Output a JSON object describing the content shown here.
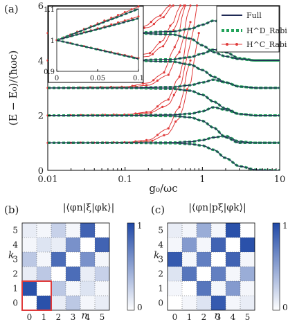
{
  "chart_data": [
    {
      "panel": "(a)",
      "type": "line",
      "xlabel": "g₀/ωc",
      "ylabel": "(E − E₀)/(ħωc)",
      "xscale": "log",
      "xlim": [
        0.01,
        10
      ],
      "ylim": [
        0,
        6
      ],
      "xticks": [
        "0.01",
        "0.1",
        "1",
        "10"
      ],
      "yticks": [
        "0",
        "2",
        "4",
        "6"
      ],
      "legend_position": "top-right",
      "legend": [
        "Full",
        "H^D_Rabi",
        "H^C_Rabi"
      ],
      "series_colors": {
        "full": "#1f2a55",
        "dispersive": "#22a35a",
        "counter": "#e03a3a"
      },
      "levels": [
        {
          "name": "level-1",
          "x": [
            0.01,
            0.1,
            0.4,
            0.7,
            1.0,
            1.4,
            2.0,
            3.0,
            5.0,
            10
          ],
          "full": [
            1.0,
            1.0,
            0.99,
            0.96,
            0.9,
            0.75,
            0.45,
            0.15,
            0.02,
            0.0
          ]
        },
        {
          "name": "level-2",
          "x": [
            0.01,
            0.1,
            0.4,
            0.7,
            1.0,
            1.4,
            2.0,
            3.0,
            5.0,
            10
          ],
          "full": [
            1.0,
            1.0,
            1.01,
            1.04,
            1.1,
            1.2,
            1.25,
            1.05,
            1.0,
            1.0
          ]
        },
        {
          "name": "level-3",
          "x": [
            0.01,
            0.1,
            0.4,
            0.7,
            1.0,
            1.4,
            2.0,
            3.0,
            5.0,
            10
          ],
          "full": [
            2.0,
            2.0,
            1.98,
            1.93,
            1.8,
            1.55,
            1.2,
            1.0,
            1.0,
            1.0
          ]
        },
        {
          "name": "level-4",
          "x": [
            0.01,
            0.1,
            0.4,
            0.7,
            1.0,
            1.4,
            2.0,
            3.0,
            5.0,
            10
          ],
          "full": [
            2.0,
            2.0,
            2.02,
            2.06,
            2.15,
            2.3,
            2.2,
            2.05,
            2.0,
            2.0
          ]
        },
        {
          "name": "level-5",
          "x": [
            0.01,
            0.1,
            0.4,
            0.7,
            1.0,
            1.4,
            2.0,
            3.0,
            5.0,
            10
          ],
          "full": [
            3.0,
            3.0,
            2.97,
            2.9,
            2.75,
            2.5,
            2.25,
            2.05,
            2.0,
            2.0
          ]
        },
        {
          "name": "level-6",
          "x": [
            0.01,
            0.1,
            0.4,
            0.7,
            1.0,
            1.4,
            2.0,
            3.0,
            5.0,
            10
          ],
          "full": [
            3.0,
            3.0,
            3.03,
            3.1,
            3.2,
            3.3,
            3.2,
            3.05,
            3.0,
            3.0
          ]
        },
        {
          "name": "level-7",
          "x": [
            0.01,
            0.1,
            0.4,
            0.7,
            1.0,
            1.4,
            2.0,
            3.0,
            5.0,
            10
          ],
          "full": [
            4.0,
            4.0,
            3.96,
            3.85,
            3.65,
            3.4,
            3.2,
            3.05,
            3.0,
            3.0
          ]
        },
        {
          "name": "level-8",
          "x": [
            0.01,
            0.1,
            0.4,
            0.7,
            1.0,
            1.4,
            2.0,
            3.0,
            5.0,
            10
          ],
          "full": [
            4.0,
            4.0,
            4.04,
            4.12,
            4.25,
            4.4,
            4.3,
            4.08,
            4.0,
            4.0
          ]
        },
        {
          "name": "level-9",
          "x": [
            0.01,
            0.1,
            0.4,
            0.7,
            1.0,
            1.4,
            2.0,
            3.0,
            5.0,
            10
          ],
          "full": [
            5.0,
            5.0,
            4.95,
            4.8,
            4.55,
            4.3,
            4.15,
            4.05,
            4.0,
            4.0
          ]
        },
        {
          "name": "level-10",
          "x": [
            0.01,
            0.1,
            0.4,
            0.7,
            1.0,
            1.4,
            2.0,
            3.0,
            5.0,
            10
          ],
          "full": [
            5.0,
            5.0,
            5.05,
            5.15,
            5.3,
            5.45,
            5.35,
            5.1,
            5.0,
            5.0
          ]
        }
      ],
      "counter_rotating_curves": [
        {
          "x": [
            0.01,
            0.1,
            0.2,
            0.35,
            0.5,
            0.7
          ],
          "y": [
            1.0,
            1.02,
            1.1,
            1.5,
            2.3,
            4.0
          ]
        },
        {
          "x": [
            0.01,
            0.1,
            0.2,
            0.35,
            0.5,
            0.7,
            0.9
          ],
          "y": [
            1.0,
            1.01,
            1.05,
            1.3,
            1.9,
            3.2,
            5.0
          ]
        },
        {
          "x": [
            0.01,
            0.1,
            0.2,
            0.35,
            0.5,
            0.7
          ],
          "y": [
            2.0,
            2.03,
            2.12,
            2.55,
            3.4,
            5.4
          ]
        },
        {
          "x": [
            0.01,
            0.1,
            0.2,
            0.35,
            0.5,
            0.7,
            0.85
          ],
          "y": [
            2.0,
            2.02,
            2.08,
            2.35,
            3.0,
            4.5,
            6.0
          ]
        },
        {
          "x": [
            0.01,
            0.1,
            0.2,
            0.3,
            0.45,
            0.6
          ],
          "y": [
            3.0,
            3.04,
            3.18,
            3.5,
            4.5,
            6.0
          ]
        },
        {
          "x": [
            0.01,
            0.1,
            0.2,
            0.35,
            0.5,
            0.7
          ],
          "y": [
            3.0,
            3.02,
            3.1,
            3.45,
            4.3,
            6.0
          ]
        },
        {
          "x": [
            0.01,
            0.1,
            0.2,
            0.3,
            0.4,
            0.52
          ],
          "y": [
            4.0,
            4.05,
            4.25,
            4.7,
            5.3,
            6.0
          ]
        },
        {
          "x": [
            0.01,
            0.1,
            0.2,
            0.3,
            0.42,
            0.58
          ],
          "y": [
            4.0,
            4.03,
            4.15,
            4.5,
            5.1,
            6.0
          ]
        },
        {
          "x": [
            0.01,
            0.1,
            0.18,
            0.27,
            0.38
          ],
          "y": [
            5.0,
            5.06,
            5.25,
            5.6,
            6.0
          ]
        },
        {
          "x": [
            0.01,
            0.1,
            0.2,
            0.3,
            0.42
          ],
          "y": [
            5.0,
            5.04,
            5.2,
            5.55,
            6.0
          ]
        }
      ],
      "inset": {
        "xlim": [
          0,
          0.1
        ],
        "ylim": [
          0.9,
          1.1
        ],
        "xticks": [
          "0",
          "0.05",
          "0.1"
        ],
        "yticks": [
          "0.9",
          "1",
          "1.1"
        ],
        "series": [
          {
            "name": "upper",
            "x": [
              0,
              0.025,
              0.05,
              0.075,
              0.1
            ],
            "full": [
              1.0,
              1.025,
              1.05,
              1.075,
              1.1
            ],
            "counter": [
              1.0,
              1.026,
              1.052,
              1.079,
              1.108
            ]
          },
          {
            "name": "upper-2",
            "x": [
              0,
              0.025,
              0.05,
              0.075,
              0.1
            ],
            "full": [
              1.0,
              1.018,
              1.035,
              1.052,
              1.07
            ],
            "counter": [
              1.0,
              1.019,
              1.037,
              1.056,
              1.076
            ]
          },
          {
            "name": "lower",
            "x": [
              0,
              0.025,
              0.05,
              0.075,
              0.1
            ],
            "full": [
              1.0,
              0.985,
              0.97,
              0.955,
              0.94
            ],
            "counter": [
              1.0,
              0.985,
              0.971,
              0.957,
              0.943
            ]
          }
        ]
      }
    },
    {
      "panel": "(b)",
      "type": "heatmap",
      "title": "|⟨φn|ξ|φk⟩|",
      "xlabel": "n",
      "ylabel": "k",
      "xticks": [
        "0",
        "1",
        "2",
        "3",
        "4",
        "5"
      ],
      "yticks": [
        "0",
        "1",
        "2",
        "3",
        "4",
        "5"
      ],
      "colorbar": [
        "0",
        "1"
      ],
      "highlight_box": {
        "n": [
          0,
          1
        ],
        "k": [
          0,
          1
        ],
        "color": "#e03a3a"
      },
      "matrix": [
        [
          0.0,
          0.95,
          0.1,
          0.3,
          0.05,
          0.1
        ],
        [
          0.95,
          0.0,
          0.3,
          0.05,
          0.15,
          0.05
        ],
        [
          0.1,
          0.3,
          0.0,
          0.8,
          0.1,
          0.25
        ],
        [
          0.3,
          0.05,
          0.8,
          0.0,
          0.6,
          0.05
        ],
        [
          0.05,
          0.15,
          0.1,
          0.6,
          0.0,
          0.85
        ],
        [
          0.1,
          0.05,
          0.25,
          0.05,
          0.85,
          0.0
        ]
      ]
    },
    {
      "panel": "(c)",
      "type": "heatmap",
      "title": "|⟨φn|pξ|φk⟩|",
      "xlabel": "n",
      "ylabel": "k",
      "xticks": [
        "0",
        "1",
        "2",
        "3",
        "4",
        "5"
      ],
      "yticks": [
        "0",
        "1",
        "2",
        "3",
        "4",
        "5"
      ],
      "colorbar": [
        "0",
        "1"
      ],
      "matrix": [
        [
          0.0,
          0.05,
          0.15,
          0.9,
          0.05,
          0.1
        ],
        [
          0.05,
          0.0,
          0.75,
          0.05,
          0.55,
          0.05
        ],
        [
          0.15,
          0.75,
          0.0,
          0.7,
          0.05,
          0.45
        ],
        [
          0.9,
          0.05,
          0.7,
          0.0,
          0.85,
          0.05
        ],
        [
          0.05,
          0.55,
          0.05,
          0.85,
          0.0,
          0.95
        ],
        [
          0.1,
          0.05,
          0.45,
          0.05,
          0.95,
          0.0
        ]
      ]
    }
  ]
}
